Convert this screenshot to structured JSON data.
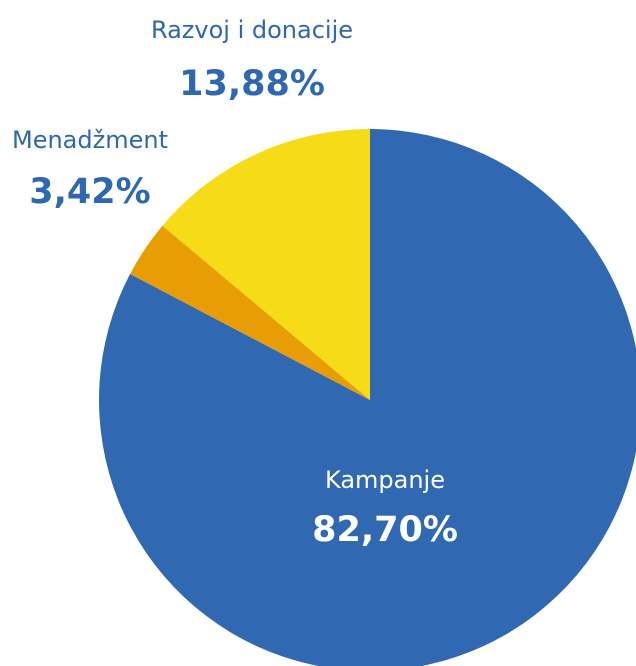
{
  "chart_data": {
    "type": "pie",
    "start_angle_deg": 0,
    "direction": "clockwise",
    "slices": [
      {
        "label": "Kampanje",
        "value": 82.7,
        "value_text": "82,70%",
        "color": "#3069B2",
        "label_color": "#FFFFFF"
      },
      {
        "label": "Menadžment",
        "value": 3.42,
        "value_text": "3,42%",
        "color": "#E89D05",
        "label_color": "#2E68B0"
      },
      {
        "label": "Razvoj i donacije",
        "value": 13.88,
        "value_text": "13,88%",
        "color": "#F5DC17",
        "label_color": "#2E68B0"
      }
    ]
  }
}
